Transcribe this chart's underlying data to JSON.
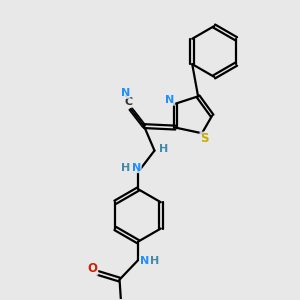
{
  "background_color": "#e8e8e8",
  "bond_color": "#000000",
  "atom_colors": {
    "N": "#1e90ff",
    "S": "#ccaa00",
    "O": "#cc2200",
    "C": "#333333",
    "H": "#4488aa"
  },
  "figsize": [
    3.0,
    3.0
  ],
  "dpi": 100
}
